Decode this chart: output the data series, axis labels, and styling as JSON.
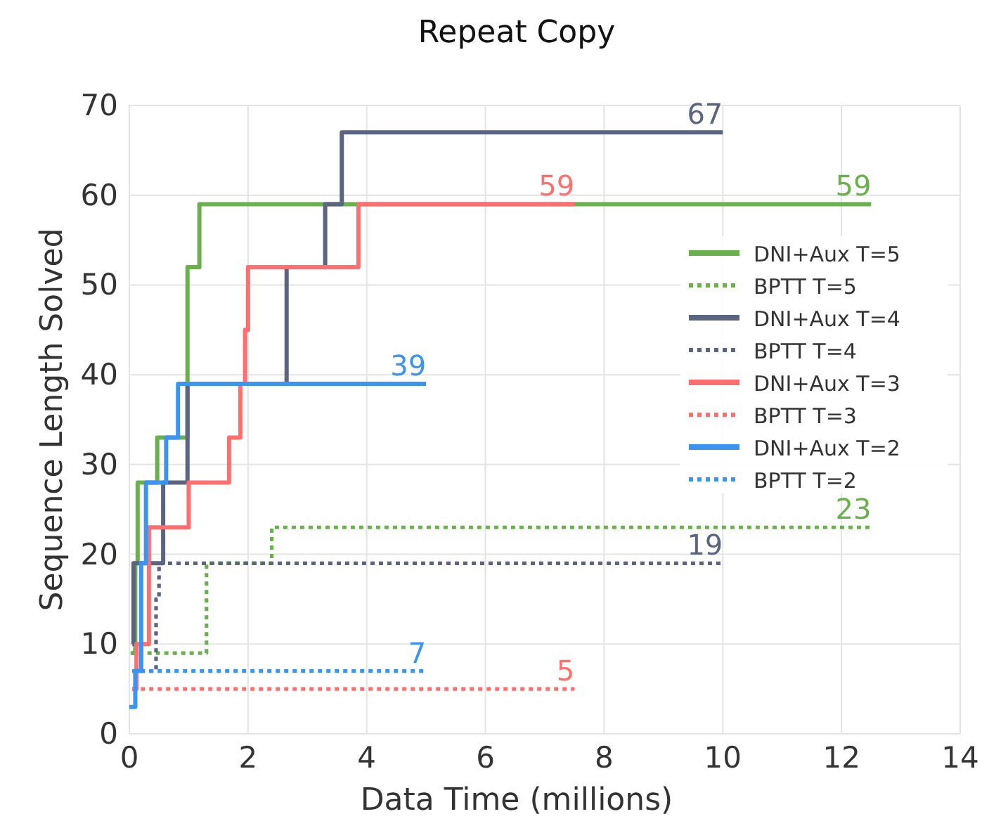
{
  "chart_data": {
    "type": "step",
    "title": "Repeat Copy",
    "xlabel": "Data Time (millions)",
    "ylabel": "Sequence Length Solved",
    "xlim": [
      0,
      14
    ],
    "ylim": [
      0,
      70
    ],
    "xticks": [
      0,
      2,
      4,
      6,
      8,
      10,
      12,
      14
    ],
    "yticks": [
      0,
      10,
      20,
      30,
      40,
      50,
      60,
      70
    ],
    "grid": true,
    "legend": "right",
    "series": [
      {
        "name": "DNI+Aux T=5",
        "color": "#6ab04c",
        "line_style": "solid",
        "x": [
          0.05,
          0.1,
          0.14,
          0.47,
          0.98,
          1.18,
          12.5
        ],
        "values": [
          9,
          19,
          28,
          33,
          52,
          59,
          59
        ],
        "value_labels": [
          null,
          null,
          null,
          null,
          null,
          null,
          "59"
        ]
      },
      {
        "name": "BPTT T=5",
        "color": "#6ab04c",
        "line_style": "dotted",
        "x": [
          0.02,
          1.3,
          2.4,
          12.5
        ],
        "values": [
          9,
          19,
          23,
          23
        ],
        "value_labels": [
          null,
          null,
          null,
          "23"
        ]
      },
      {
        "name": "DNI+Aux T=4",
        "color": "#5b6580",
        "line_style": "solid",
        "x": [
          0.05,
          0.07,
          0.57,
          0.98,
          2.65,
          3.3,
          3.58,
          10
        ],
        "values": [
          10,
          19,
          28,
          39,
          52,
          59,
          67,
          67
        ],
        "value_labels": [
          null,
          null,
          null,
          null,
          null,
          null,
          null,
          "67"
        ]
      },
      {
        "name": "BPTT T=4",
        "color": "#5b6580",
        "line_style": "dotted",
        "x": [
          0.05,
          0.35,
          0.45,
          0.5,
          10
        ],
        "values": [
          7,
          7,
          15,
          19,
          19
        ],
        "value_labels": [
          null,
          null,
          null,
          null,
          "19"
        ]
      },
      {
        "name": "DNI+Aux T=3",
        "color": "#ff6f6f",
        "line_style": "solid",
        "x": [
          0.05,
          0.12,
          0.33,
          1.0,
          1.68,
          1.87,
          1.95,
          2.0,
          3.86,
          7.5
        ],
        "values": [
          5,
          10,
          23,
          28,
          33,
          39,
          45,
          52,
          59,
          59
        ],
        "value_labels": [
          null,
          null,
          null,
          null,
          null,
          null,
          null,
          null,
          null,
          "59"
        ]
      },
      {
        "name": "BPTT T=3",
        "color": "#ff6f6f",
        "line_style": "dotted",
        "x": [
          0.05,
          7.5
        ],
        "values": [
          5,
          5
        ],
        "value_labels": [
          null,
          "5"
        ]
      },
      {
        "name": "DNI+Aux T=2",
        "color": "#3b95f0",
        "line_style": "solid",
        "x": [
          0,
          0.1,
          0.2,
          0.28,
          0.62,
          0.82,
          5
        ],
        "values": [
          3,
          7,
          19,
          28,
          33,
          39,
          39
        ],
        "value_labels": [
          null,
          null,
          null,
          null,
          null,
          null,
          "39"
        ]
      },
      {
        "name": "BPTT T=2",
        "color": "#3b95f0",
        "line_style": "dotted",
        "x": [
          0.05,
          5
        ],
        "values": [
          7,
          7
        ],
        "value_labels": [
          null,
          "7"
        ]
      }
    ]
  }
}
